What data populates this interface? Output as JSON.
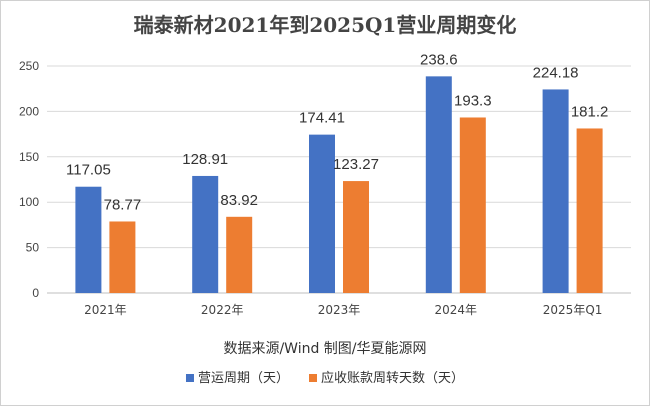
{
  "chart_data": {
    "type": "bar",
    "title": "瑞泰新材2021年到2025Q1营业周期变化",
    "xlabel": "数据来源/Wind 制图/华夏能源网",
    "ylabel": "",
    "categories": [
      "2021年",
      "2022年",
      "2023年",
      "2024年",
      "2025年Q1"
    ],
    "series": [
      {
        "name": "营运周期（天）",
        "color": "#4472C4",
        "values": [
          117.05,
          128.91,
          174.41,
          238.6,
          224.18
        ]
      },
      {
        "name": "应收账款周转天数（天）",
        "color": "#ED7D31",
        "values": [
          78.77,
          83.92,
          123.27,
          193.3,
          181.2
        ]
      }
    ],
    "value_labels": [
      [
        "117.05",
        "128.91",
        "174.41",
        "238.6",
        "224.18"
      ],
      [
        "78.77",
        "83.92",
        "123.27",
        "193.3",
        "181.2"
      ]
    ],
    "ylim": [
      0,
      250
    ],
    "yticks": [
      0,
      50,
      100,
      150,
      200,
      250
    ],
    "grid": true,
    "legend_position": "bottom"
  }
}
